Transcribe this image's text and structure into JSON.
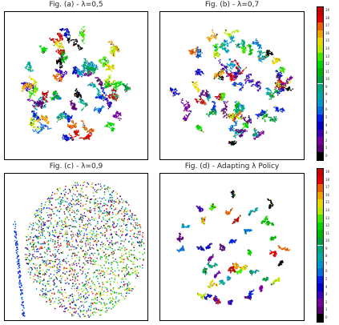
{
  "chart_data": [
    {
      "type": "scatter",
      "title": "Fig. (a) - λ=0,5",
      "xlabel": "",
      "ylabel": "",
      "note_kind": "t-SNE embedding, 20 clusters colored by class"
    },
    {
      "type": "scatter",
      "title": "Fig. (b) - λ=0,7",
      "xlabel": "",
      "ylabel": ""
    },
    {
      "type": "scatter",
      "title": "Fig. (c) - λ=0,9",
      "xlabel": "",
      "ylabel": ""
    },
    {
      "type": "scatter",
      "title": "Fig. (d) - Adapting λ Policy",
      "xlabel": "",
      "ylabel": ""
    }
  ],
  "colorbar": {
    "ticks": [
      "0",
      "1",
      "2",
      "3",
      "4",
      "5",
      "6",
      "7",
      "8",
      "9",
      "10",
      "11",
      "12",
      "13",
      "14",
      "15",
      "16",
      "17",
      "18",
      "19"
    ],
    "colors": [
      "#000000",
      "#5a0072",
      "#7a00a0",
      "#3c00b8",
      "#0000c8",
      "#0020e8",
      "#0070e0",
      "#0098d0",
      "#00a8a8",
      "#00a880",
      "#00a040",
      "#00b800",
      "#00d800",
      "#40e800",
      "#b8e800",
      "#e8d800",
      "#f0a000",
      "#e86000",
      "#e00000",
      "#c80000"
    ]
  }
}
